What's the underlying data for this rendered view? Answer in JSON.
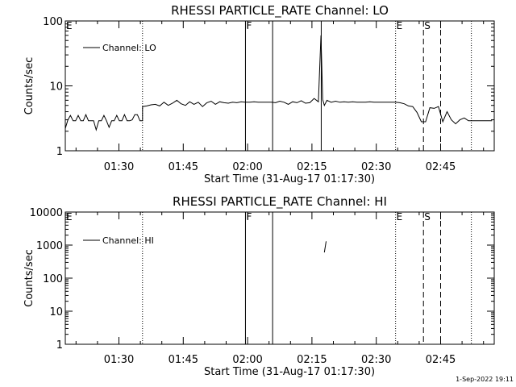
{
  "footer": {
    "timestamp": "1-Sep-2022 19:11"
  },
  "chart_data": [
    {
      "type": "line",
      "title": "RHESSI PARTICLE_RATE Channel: LO",
      "xlabel": "Start Time (31-Aug-17 01:17:30)",
      "ylabel": "Counts/sec",
      "x_tick_labels": [
        "01:30",
        "01:45",
        "02:00",
        "02:15",
        "02:30",
        "02:45"
      ],
      "y_tick_labels": [
        "1",
        "10",
        "100"
      ],
      "y_scale": "log",
      "ylim": [
        1,
        100
      ],
      "xlim_minutes_after_01:17:30": [
        0,
        100
      ],
      "legend": {
        "label": "Channel: LO",
        "position": "top-left"
      },
      "markers": [
        {
          "label": "E",
          "time": "01:17:30",
          "style": "dotted"
        },
        {
          "label": "",
          "time": "01:35:30",
          "style": "dotted"
        },
        {
          "label": "F",
          "time": "01:59:30",
          "style": "solid"
        },
        {
          "label": "",
          "time": "02:05:50",
          "style": "solid"
        },
        {
          "label": "",
          "time": "02:17:10",
          "style": "solid"
        },
        {
          "label": "E",
          "time": "02:34:30",
          "style": "dotted"
        },
        {
          "label": "S",
          "time": "02:41:00",
          "style": "dashed"
        },
        {
          "label": "",
          "time": "02:45:00",
          "style": "dashed"
        },
        {
          "label": "",
          "time": "02:52:10",
          "style": "dotted"
        }
      ],
      "series": [
        {
          "x": [
            0,
            0.6,
            1.2,
            1.8,
            2.4,
            3.0,
            3.6,
            4.2,
            4.8,
            5.4,
            6.0,
            6.6,
            7.2,
            7.8,
            8.4,
            9.0,
            9.6,
            10.2,
            10.8,
            11.4,
            12.0,
            12.6,
            13.2,
            13.8,
            14.4,
            15.0,
            15.6,
            16.2,
            16.8,
            17.4,
            18.0,
            18.0,
            19,
            20,
            21,
            22,
            23,
            24,
            25,
            26,
            27,
            28,
            29,
            30,
            31,
            32,
            33,
            34,
            35,
            36,
            37,
            38,
            39,
            40,
            41,
            42,
            42.0,
            43,
            44,
            45,
            46,
            47,
            48,
            49,
            50,
            51,
            52,
            53,
            54,
            55,
            56,
            57,
            58,
            59,
            59.6,
            60.0,
            60.4,
            61,
            62,
            63,
            64,
            65,
            66,
            67,
            68,
            69,
            70,
            71,
            72,
            73,
            74,
            75,
            76,
            77,
            78,
            79,
            80,
            81,
            82,
            83,
            84,
            85,
            86,
            87,
            88,
            89,
            90,
            91,
            92,
            93,
            94,
            95,
            96,
            97,
            98,
            99.5
          ],
          "y": [
            2.2,
            3.0,
            3.5,
            2.9,
            2.9,
            3.5,
            2.9,
            2.9,
            3.6,
            2.9,
            2.9,
            2.9,
            2.1,
            2.9,
            2.9,
            3.5,
            2.9,
            2.3,
            2.9,
            2.9,
            3.5,
            2.9,
            2.9,
            3.6,
            2.9,
            2.9,
            3.0,
            3.6,
            3.6,
            2.9,
            2.9,
            4.8,
            4.9,
            5.1,
            5.2,
            4.9,
            5.6,
            5.0,
            5.4,
            6.0,
            5.3,
            5.0,
            5.7,
            5.2,
            5.6,
            4.8,
            5.5,
            5.8,
            5.2,
            5.7,
            5.5,
            5.4,
            5.6,
            5.5,
            5.7,
            5.6,
            5.6,
            5.6,
            5.7,
            5.6,
            5.6,
            5.6,
            5.6,
            5.5,
            5.8,
            5.6,
            5.2,
            5.7,
            5.5,
            5.9,
            5.4,
            5.5,
            6.4,
            5.7,
            60.0,
            6.2,
            5.0,
            6.0,
            5.6,
            5.8,
            5.6,
            5.7,
            5.6,
            5.7,
            5.6,
            5.6,
            5.6,
            5.7,
            5.6,
            5.6,
            5.6,
            5.6,
            5.6,
            5.6,
            5.5,
            5.3,
            4.9,
            4.8,
            3.9,
            2.8,
            2.8,
            4.6,
            4.5,
            4.8,
            2.8,
            4.0,
            3.0,
            2.6,
            3.0,
            3.2,
            2.9,
            2.9,
            2.9,
            2.9,
            2.9,
            2.9
          ]
        }
      ]
    },
    {
      "type": "line",
      "title": "RHESSI PARTICLE_RATE Channel: HI",
      "xlabel": "Start Time (31-Aug-17 01:17:30)",
      "ylabel": "Counts/sec",
      "x_tick_labels": [
        "01:30",
        "01:45",
        "02:00",
        "02:15",
        "02:30",
        "02:45"
      ],
      "y_tick_labels": [
        "1",
        "10",
        "100",
        "1000",
        "10000"
      ],
      "y_scale": "log",
      "ylim": [
        1,
        10000
      ],
      "legend": {
        "label": "Channel: HI",
        "position": "top-left"
      },
      "markers": [
        {
          "label": "E",
          "time": "01:17:30",
          "style": "dotted"
        },
        {
          "label": "",
          "time": "01:35:30",
          "style": "dotted"
        },
        {
          "label": "F",
          "time": "01:59:30",
          "style": "solid"
        },
        {
          "label": "",
          "time": "02:05:50",
          "style": "solid"
        },
        {
          "label": "E",
          "time": "02:34:30",
          "style": "dotted"
        },
        {
          "label": "S",
          "time": "02:41:00",
          "style": "dashed"
        },
        {
          "label": "",
          "time": "02:45:00",
          "style": "dashed"
        },
        {
          "label": "",
          "time": "02:52:10",
          "style": "dotted"
        }
      ],
      "series": [
        {
          "x": [
            60.4,
            60.8
          ],
          "y": [
            600,
            1300
          ]
        }
      ]
    }
  ]
}
